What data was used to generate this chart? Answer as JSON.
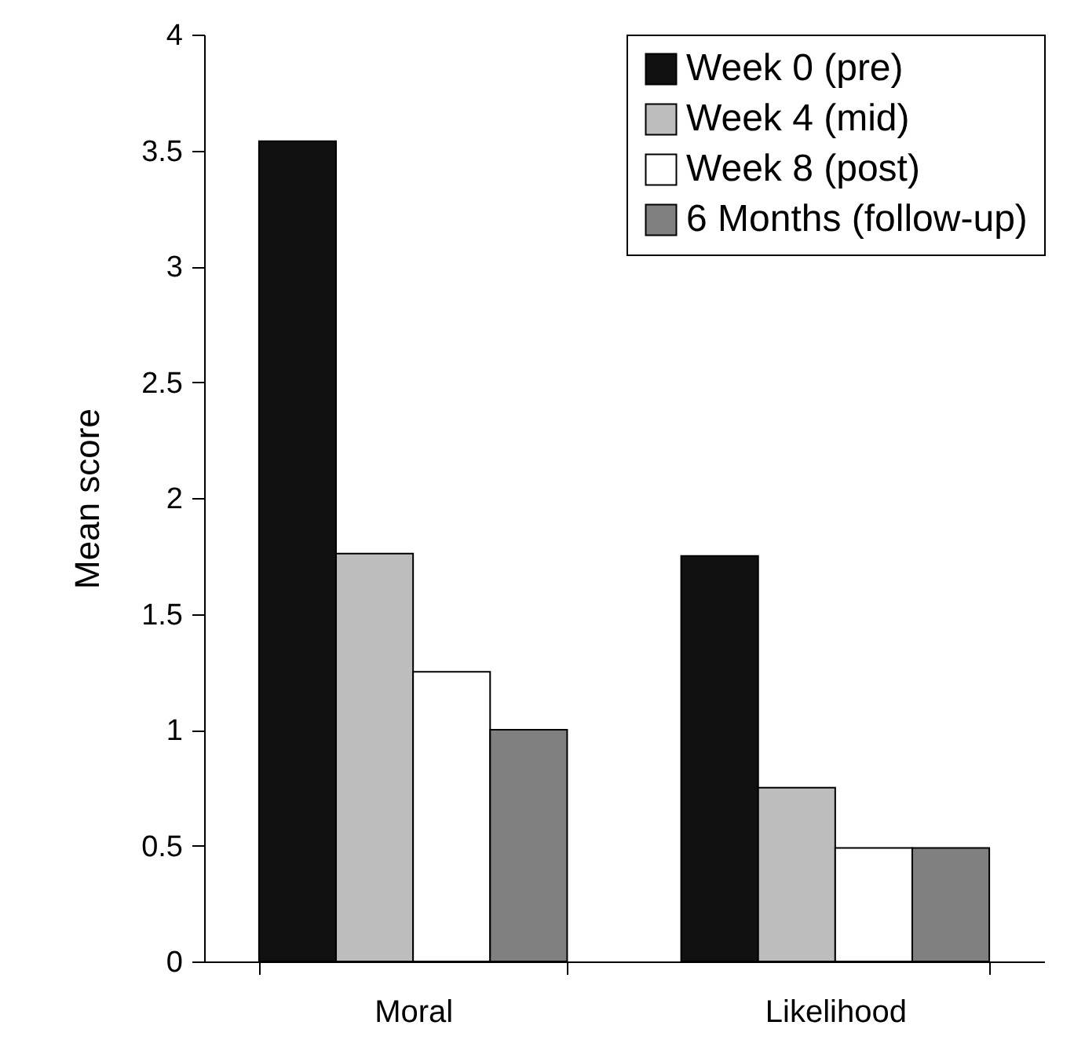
{
  "chart_data": {
    "type": "bar",
    "ylabel": "Mean score",
    "categories": [
      "Moral",
      "Likelihood"
    ],
    "series": [
      {
        "name": "Week 0 (pre)",
        "color": "#111111",
        "values": [
          3.54,
          1.75
        ]
      },
      {
        "name": "Week 4 (mid)",
        "color": "#bdbdbd",
        "values": [
          1.76,
          0.75
        ]
      },
      {
        "name": "Week 8 (post)",
        "color": "#ffffff",
        "values": [
          1.25,
          0.49
        ]
      },
      {
        "name": "6 Months (follow-up)",
        "color": "#808080",
        "values": [
          1.0,
          0.49
        ]
      }
    ],
    "ylim": [
      0,
      4
    ],
    "yticks": [
      0,
      0.5,
      1,
      1.5,
      2,
      2.5,
      3,
      3.5,
      4
    ],
    "grid": false,
    "legend": "top right"
  }
}
